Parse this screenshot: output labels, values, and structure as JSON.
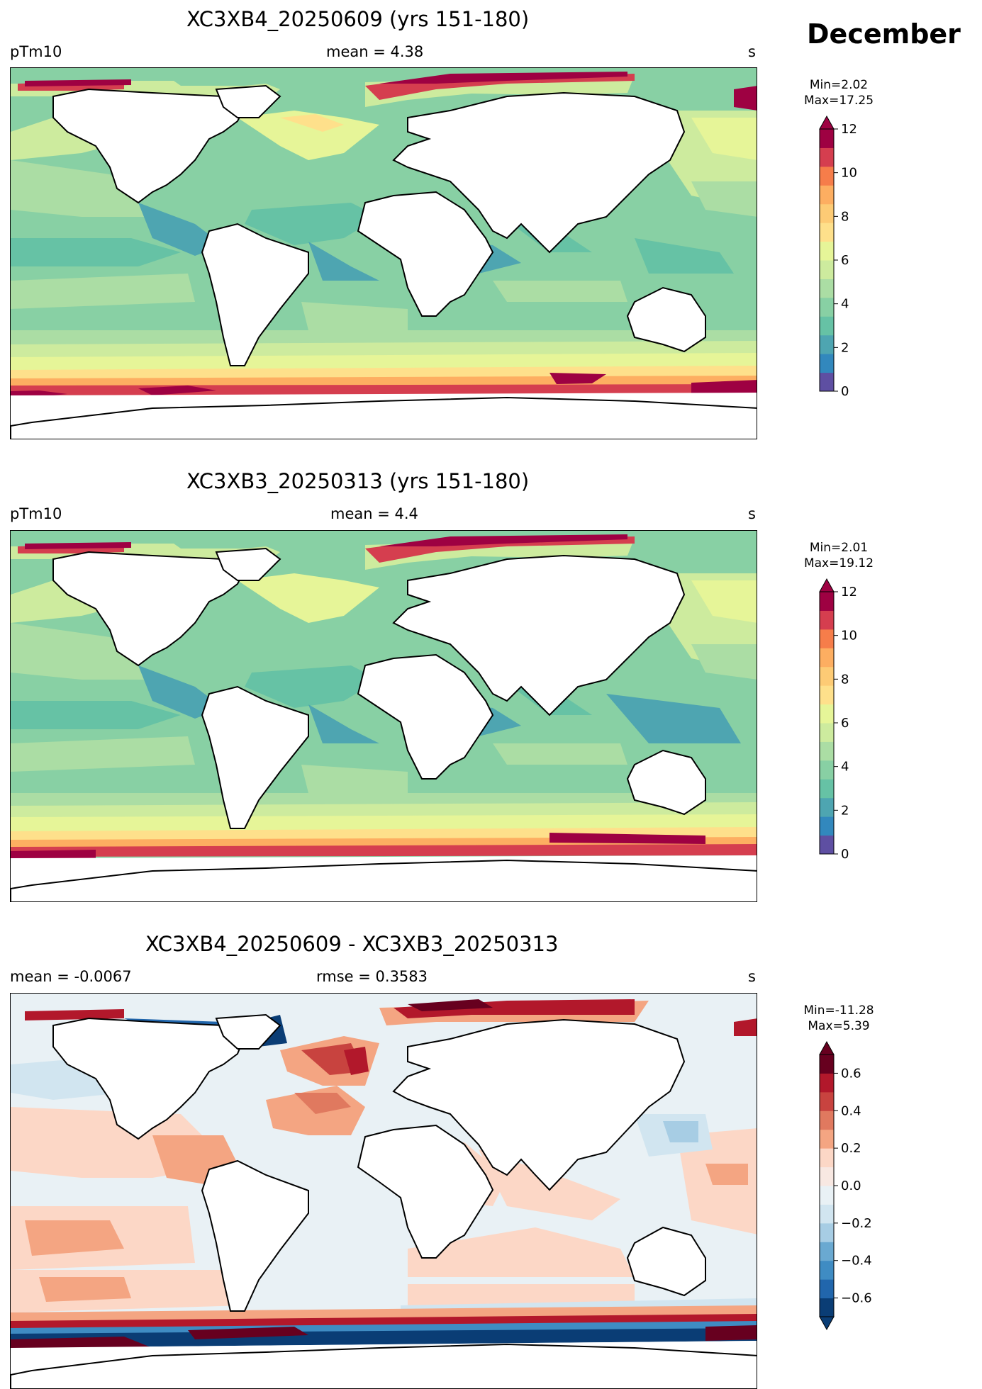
{
  "month": "December",
  "panels": [
    {
      "title": "XC3XB4_20250609 (yrs 151-180)",
      "left_label": "pTm10",
      "center_label": "mean = 4.38",
      "right_label": "s",
      "min_label": "Min=2.02",
      "max_label": "Max=17.25"
    },
    {
      "title": "XC3XB3_20250313 (yrs 151-180)",
      "left_label": "pTm10",
      "center_label": "mean = 4.4",
      "right_label": "s",
      "min_label": "Min=2.01",
      "max_label": "Max=19.12"
    },
    {
      "title": "XC3XB4_20250609 - XC3XB3_20250313",
      "left_label": "mean = -0.0067",
      "center_label": "rmse = 0.3583",
      "right_label": "s",
      "min_label": "Min=-11.28",
      "max_label": "Max=5.39"
    }
  ],
  "colorbar_abs": {
    "range": [
      0,
      12
    ],
    "ticks": [
      "0",
      "2",
      "4",
      "6",
      "8",
      "10",
      "12"
    ],
    "colors": [
      "#5e4fa2",
      "#3288bd",
      "#4ea5b1",
      "#66c2a5",
      "#88d0a4",
      "#abdda4",
      "#cdeb9e",
      "#e6f598",
      "#fee08b",
      "#fdcb75",
      "#fdae61",
      "#f67d4a",
      "#d53e4f",
      "#9e0142"
    ],
    "extend": "max"
  },
  "colorbar_diff": {
    "range": [
      -0.7,
      0.7
    ],
    "ticks": [
      "−0.6",
      "−0.4",
      "−0.2",
      "0.0",
      "0.2",
      "0.4",
      "0.6"
    ],
    "colors": [
      "#0a3d75",
      "#2166ac",
      "#3f8cc3",
      "#6aa9d1",
      "#a7cde4",
      "#d1e5f0",
      "#e9f1f5",
      "#f8e8e2",
      "#fcd7c6",
      "#f4a582",
      "#e0795f",
      "#c8433f",
      "#b2182b",
      "#67001f"
    ],
    "extend": "both"
  }
}
